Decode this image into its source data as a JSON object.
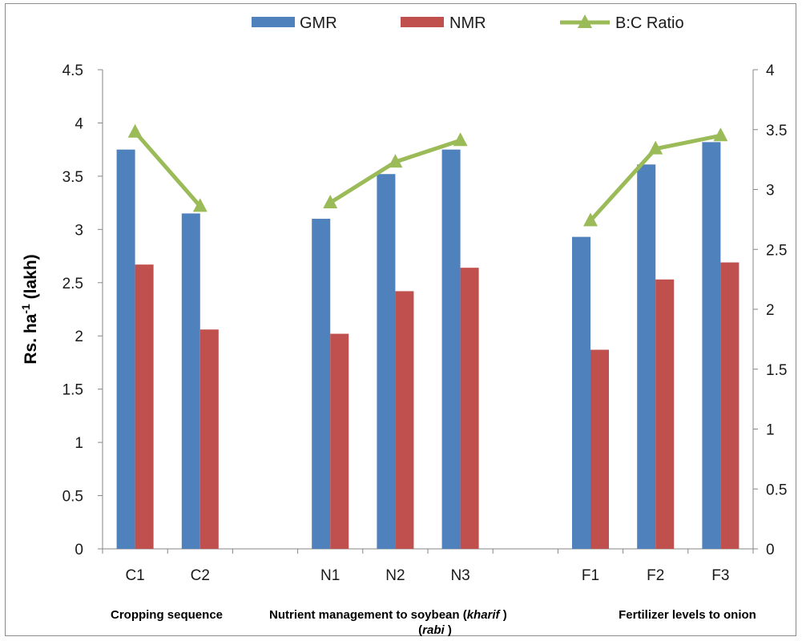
{
  "chart_data": {
    "type": "bar",
    "categories": [
      "C1",
      "C2",
      "",
      "N1",
      "N2",
      "N3",
      "",
      "F1",
      "F2",
      "F3"
    ],
    "series": [
      {
        "name": "GMR",
        "type": "bar",
        "axis": "left",
        "color": "#4f81bd",
        "values": [
          3.75,
          3.15,
          null,
          3.1,
          3.52,
          3.75,
          null,
          2.93,
          3.61,
          3.82
        ]
      },
      {
        "name": "NMR",
        "type": "bar",
        "axis": "left",
        "color": "#c0504d",
        "values": [
          2.67,
          2.06,
          null,
          2.02,
          2.42,
          2.64,
          null,
          1.87,
          2.53,
          2.69
        ]
      },
      {
        "name": "B:C Ratio",
        "type": "line",
        "axis": "right",
        "color": "#9bbb59",
        "marker": "triangle",
        "values": [
          3.48,
          2.86,
          null,
          2.89,
          3.23,
          3.41,
          null,
          2.74,
          3.34,
          3.45
        ]
      }
    ],
    "ylabel": {
      "main": "Rs. ha",
      "sup": "-1",
      "tail": " (lakh)"
    },
    "ylim": [
      0,
      4.5
    ],
    "yticks": [
      "0",
      "0.5",
      "1",
      "1.5",
      "2",
      "2.5",
      "3",
      "3.5",
      "4",
      "4.5"
    ],
    "y2lim": [
      0,
      4
    ],
    "y2ticks": [
      "0",
      "0.5",
      "1",
      "1.5",
      "2",
      "2.5",
      "3",
      "3.5",
      "4"
    ],
    "group_labels": [
      {
        "text": "Cropping sequence"
      },
      {
        "text": "Nutrient  management  to  soybean  (kharif )"
      },
      {
        "text": "(rabi )"
      },
      {
        "text": "Fertilizer levels to onion"
      }
    ],
    "legend": {
      "position": "top",
      "entries": [
        "GMR",
        "NMR",
        "B:C Ratio"
      ]
    },
    "grid": false
  }
}
